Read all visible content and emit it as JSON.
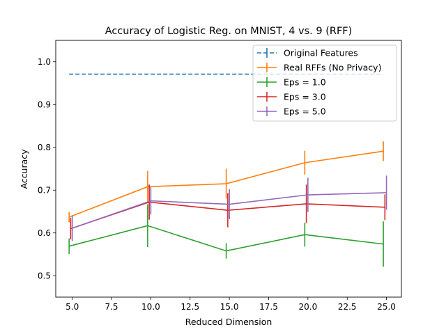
{
  "chart_data": {
    "type": "line",
    "title": "Accuracy of Logistic Reg. on MNIST, 4 vs. 9 (RFF)",
    "xlabel": "Reduced Dimension",
    "ylabel": "Accuracy",
    "xlim": [
      3.95,
      25.95
    ],
    "ylim": [
      0.45,
      1.05
    ],
    "xticks": [
      5.0,
      7.5,
      10.0,
      12.5,
      15.0,
      17.5,
      20.0,
      22.5,
      25.0
    ],
    "xtick_labels": [
      "5.0",
      "7.5",
      "10.0",
      "12.5",
      "15.0",
      "17.5",
      "20.0",
      "22.5",
      "25.0"
    ],
    "yticks": [
      0.5,
      0.6,
      0.7,
      0.8,
      0.9,
      1.0
    ],
    "ytick_labels": [
      "0.5",
      "0.6",
      "0.7",
      "0.8",
      "0.9",
      "1.0"
    ],
    "grid": false,
    "legend_position": "top-right",
    "series": [
      {
        "name": "Original Features",
        "color": "#1f77b4",
        "dashed": true,
        "x": [
          4.8,
          24.8
        ],
        "y": [
          0.971,
          0.971
        ],
        "yerr": [
          0,
          0
        ]
      },
      {
        "name": "Real RFFs (No Privacy)",
        "color": "#ff7f0e",
        "dashed": false,
        "x": [
          4.8,
          9.8,
          14.8,
          19.8,
          24.8
        ],
        "y": [
          0.637,
          0.708,
          0.715,
          0.764,
          0.791
        ],
        "yerr": [
          0.012,
          0.037,
          0.035,
          0.028,
          0.023
        ]
      },
      {
        "name": "Eps = 1.0",
        "color": "#2ca02c",
        "dashed": false,
        "x": [
          4.8,
          9.8,
          14.8,
          19.8,
          24.8
        ],
        "y": [
          0.569,
          0.617,
          0.558,
          0.596,
          0.574
        ],
        "yerr": [
          0.018,
          0.05,
          0.018,
          0.028,
          0.053
        ]
      },
      {
        "name": "Eps = 3.0",
        "color": "#d62728",
        "dashed": false,
        "x": [
          4.9,
          9.9,
          14.9,
          19.9,
          24.9
        ],
        "y": [
          0.61,
          0.672,
          0.653,
          0.668,
          0.66
        ],
        "yerr": [
          0.025,
          0.041,
          0.04,
          0.045,
          0.03
        ]
      },
      {
        "name": "Eps = 5.0",
        "color": "#9467bd",
        "dashed": false,
        "x": [
          5.0,
          10.0,
          15.0,
          20.0,
          25.0
        ],
        "y": [
          0.611,
          0.675,
          0.667,
          0.689,
          0.694
        ],
        "yerr": [
          0.03,
          0.032,
          0.035,
          0.04,
          0.04
        ]
      }
    ]
  }
}
